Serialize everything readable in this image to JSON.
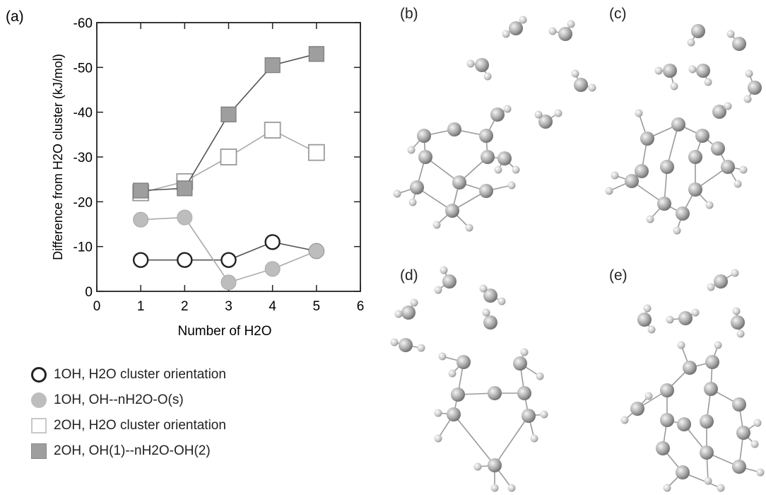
{
  "panel_labels": {
    "a": "(a)",
    "b": "(b)",
    "c": "(c)",
    "d": "(d)",
    "e": "(e)"
  },
  "chart_data": {
    "type": "line",
    "xlabel": "Number of  H2O",
    "ylabel": "Difference from H2O cluster (kJ/mol)",
    "xlim": [
      0,
      6
    ],
    "ylim": [
      0,
      -60
    ],
    "x_ticks": [
      "0",
      "1",
      "2",
      "3",
      "4",
      "5",
      "6"
    ],
    "y_ticks": [
      "0",
      "-10",
      "-20",
      "-30",
      "-40",
      "-50",
      "-60"
    ],
    "grid": false,
    "legend_position": "below plot",
    "x": [
      1,
      2,
      3,
      4,
      5
    ],
    "series": [
      {
        "name": "1OH, H2O cluster orientation",
        "marker": "circle-open",
        "color": "#222222",
        "values": [
          -7,
          -7,
          -7,
          -11,
          -9
        ]
      },
      {
        "name": "1OH, OH--nH2O-O(s)",
        "marker": "circle-filled",
        "color": "#bdbdbd",
        "values": [
          -16,
          -16.5,
          -2,
          -5,
          -9
        ]
      },
      {
        "name": "2OH, H2O cluster orientation",
        "marker": "square-open",
        "color": "#c8c8c8",
        "values": [
          -22,
          -24.5,
          -30,
          -36,
          -31
        ]
      },
      {
        "name": "2OH, OH(1)--nH2O-OH(2)",
        "marker": "square-filled",
        "color": "#9e9e9e",
        "values": [
          -22.5,
          -23,
          -39.5,
          -50.5,
          -53
        ]
      }
    ]
  }
}
